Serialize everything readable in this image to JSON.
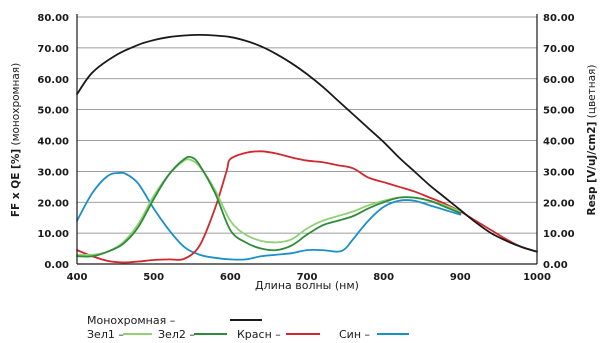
{
  "chart_data": {
    "type": "line",
    "title": "",
    "xlabel": "Длина волны (нм)",
    "ylabel_left": {
      "bold": "FF x QE [%]",
      "normal": " (монохромная)"
    },
    "ylabel_right": {
      "bold": "Resp [V/uJ/cm2]",
      "normal": " (цветная)"
    },
    "xlim": [
      400,
      1000
    ],
    "ylim": [
      0,
      80
    ],
    "x_ticks": [
      "400",
      "500",
      "600",
      "700",
      "800",
      "900",
      "1000"
    ],
    "y_ticks_left": [
      "0.00",
      "10.00",
      "20.00",
      "30.00",
      "40.00",
      "50.00",
      "60.00",
      "70.00",
      "80.00"
    ],
    "y_ticks_right": [
      "0.00",
      "10.00",
      "20.00",
      "30.00",
      "40.00",
      "50.00",
      "60.00",
      "70.00",
      "80.00"
    ],
    "grid": "horizontal",
    "legend_position": "bottom",
    "series": [
      {
        "key": "mono",
        "name": "Монохромная",
        "color": "#1a1a1a",
        "x": [
          400,
          420,
          450,
          480,
          500,
          520,
          540,
          560,
          580,
          600,
          620,
          640,
          660,
          680,
          700,
          720,
          740,
          760,
          780,
          800,
          820,
          840,
          860,
          880,
          900,
          920,
          940,
          960,
          980,
          1000
        ],
        "y": [
          55,
          62,
          67.5,
          71,
          72.5,
          73.5,
          74,
          74.2,
          74,
          73.5,
          72.3,
          70.5,
          68,
          65,
          61.5,
          57.5,
          53,
          48.5,
          44,
          39.5,
          34.5,
          30,
          25.5,
          21.5,
          17.5,
          13.5,
          10,
          7.5,
          5.5,
          4
        ]
      },
      {
        "key": "green1",
        "name": "Зел1",
        "color": "#8fd174",
        "x": [
          400,
          420,
          440,
          460,
          480,
          500,
          520,
          540,
          550,
          560,
          580,
          600,
          620,
          640,
          660,
          680,
          700,
          720,
          740,
          760,
          780,
          800,
          820,
          840,
          860,
          880,
          900
        ],
        "y": [
          3,
          3,
          4,
          7,
          13,
          22,
          29,
          33.5,
          33.5,
          31.5,
          24,
          14,
          9.5,
          7.5,
          7,
          8,
          11.5,
          14,
          15.5,
          17,
          19,
          20.5,
          21.5,
          21.5,
          20.5,
          19,
          17
        ]
      },
      {
        "key": "green2",
        "name": "Зел2",
        "color": "#2e8b3a",
        "x": [
          400,
          420,
          440,
          460,
          480,
          500,
          520,
          540,
          550,
          560,
          580,
          600,
          620,
          640,
          660,
          680,
          700,
          720,
          740,
          760,
          780,
          800,
          820,
          840,
          860,
          880,
          900
        ],
        "y": [
          2.5,
          2.5,
          4,
          6.5,
          12,
          21,
          29,
          34,
          34.5,
          32,
          23,
          11,
          7,
          5,
          4.5,
          6,
          9.5,
          12.5,
          14,
          15.5,
          18,
          20,
          21.5,
          21.5,
          20.5,
          18.5,
          16.5
        ]
      },
      {
        "key": "red",
        "name": "Красн",
        "color": "#d0282e",
        "x": [
          400,
          420,
          440,
          460,
          480,
          500,
          520,
          540,
          560,
          580,
          595,
          600,
          620,
          640,
          660,
          680,
          700,
          720,
          740,
          760,
          780,
          800,
          820,
          840,
          860,
          880,
          900,
          920,
          940,
          960,
          980,
          1000
        ],
        "y": [
          4.5,
          2.5,
          1,
          0.5,
          0.8,
          1.3,
          1.5,
          1.7,
          6,
          18,
          30,
          34,
          36,
          36.5,
          35.8,
          34.5,
          33.5,
          33,
          32,
          31,
          28,
          26.5,
          25,
          23.5,
          21.5,
          19.5,
          17,
          14,
          11,
          8,
          5.5,
          4
        ]
      },
      {
        "key": "blue",
        "name": "Син",
        "color": "#1a8fc9",
        "x": [
          400,
          420,
          440,
          455,
          465,
          480,
          500,
          520,
          540,
          560,
          580,
          600,
          620,
          640,
          660,
          680,
          700,
          720,
          740,
          750,
          760,
          780,
          800,
          820,
          840,
          860,
          880,
          900
        ],
        "y": [
          14,
          23,
          28.5,
          29.5,
          29,
          26,
          18,
          11,
          5.5,
          3,
          2,
          1.5,
          1.5,
          2.5,
          3,
          3.5,
          4.5,
          4.5,
          4,
          5,
          8,
          14,
          18.5,
          20.5,
          20.5,
          19,
          17.5,
          16
        ]
      }
    ]
  },
  "legend": {
    "mono_label": "Монохромная –",
    "green1_label": "Зел1 –",
    "green2_label": "Зел2 –",
    "red_label": "Красн –",
    "blue_label": "Син –"
  }
}
